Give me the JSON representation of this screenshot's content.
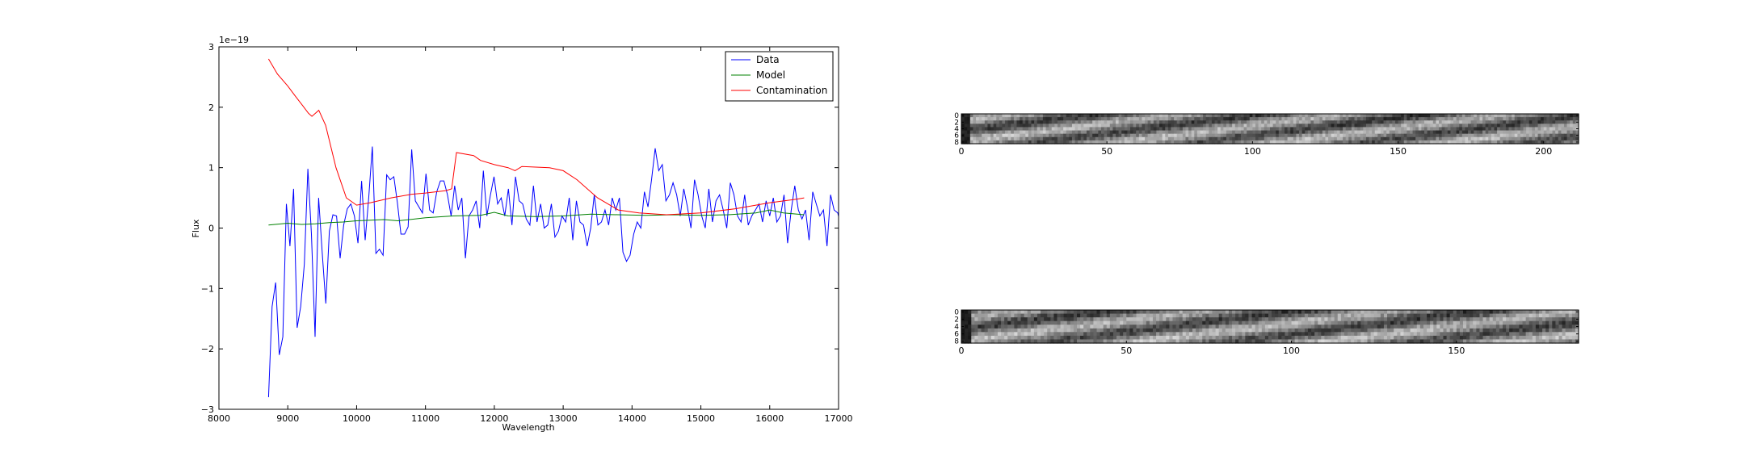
{
  "chart_data": [
    {
      "type": "line",
      "title": "",
      "xlabel": "Wavelength",
      "ylabel": "Flux",
      "scale_label": "1e−19",
      "xlim": [
        8000,
        17000
      ],
      "ylim": [
        -3,
        3
      ],
      "xticks": [
        "8000",
        "9000",
        "10000",
        "11000",
        "12000",
        "13000",
        "14000",
        "15000",
        "16000",
        "17000"
      ],
      "yticks": [
        "−3",
        "−2",
        "−1",
        "0",
        "1",
        "2",
        "3"
      ],
      "grid": false,
      "legend_position": "top-right",
      "series": [
        {
          "name": "Data",
          "color": "#0000ff",
          "x_start": 8720,
          "x_step": 52,
          "values": [
            -2.8,
            -1.3,
            -0.9,
            -2.1,
            -1.8,
            0.4,
            -0.3,
            0.65,
            -1.65,
            -1.3,
            -0.6,
            0.98,
            -0.1,
            -1.8,
            0.5,
            -0.4,
            -1.25,
            -0.05,
            0.22,
            0.2,
            -0.5,
            0.05,
            0.32,
            0.4,
            0.2,
            -0.25,
            0.78,
            -0.2,
            0.5,
            1.35,
            -0.42,
            -0.35,
            -0.45,
            0.88,
            0.8,
            0.85,
            0.42,
            -0.1,
            -0.1,
            0.02,
            1.3,
            0.45,
            0.35,
            0.25,
            0.9,
            0.3,
            0.25,
            0.6,
            0.78,
            0.78,
            0.55,
            0.2,
            0.7,
            0.3,
            0.5,
            -0.5,
            0.2,
            0.3,
            0.45,
            0.0,
            0.95,
            0.2,
            0.55,
            0.85,
            0.4,
            0.5,
            0.2,
            0.65,
            0.05,
            0.85,
            0.45,
            0.4,
            0.15,
            0.05,
            0.7,
            0.1,
            0.4,
            0.0,
            0.05,
            0.4,
            -0.15,
            -0.05,
            0.2,
            0.1,
            0.5,
            -0.2,
            0.45,
            0.1,
            0.05,
            -0.3,
            0.0,
            0.55,
            0.05,
            0.1,
            0.3,
            0.05,
            0.5,
            0.3,
            0.5,
            -0.4,
            -0.55,
            -0.45,
            -0.1,
            0.1,
            0.0,
            0.6,
            0.35,
            0.8,
            1.32,
            0.95,
            1.05,
            0.45,
            0.55,
            0.75,
            0.55,
            0.2,
            0.65,
            0.35,
            0.0,
            0.8,
            0.55,
            0.2,
            0.0,
            0.65,
            0.1,
            0.45,
            0.55,
            0.3,
            0.0,
            0.75,
            0.55,
            0.2,
            0.1,
            0.55,
            0.05,
            0.2,
            0.3,
            0.4,
            0.1,
            0.45,
            0.2,
            0.5,
            0.1,
            0.2,
            0.55,
            -0.25,
            0.3,
            0.7,
            0.3,
            0.15,
            0.3,
            -0.2,
            0.6,
            0.4,
            0.2,
            0.3,
            -0.3,
            0.55,
            0.3,
            0.25,
            0.0,
            0.6,
            0.5,
            0.3,
            0.85,
            0.55,
            0.5,
            0.6,
            0.4,
            0.15,
            0.5,
            0.1,
            -0.2,
            0.4,
            0.2,
            0.75,
            0.3,
            -0.1,
            0.25,
            0.85,
            0.1,
            0.55,
            0.2,
            0.3,
            0.45,
            -0.1,
            -0.05,
            0.4,
            0.3
          ]
        },
        {
          "name": "Model",
          "color": "#008000",
          "x": [
            8720,
            9000,
            9200,
            9400,
            9600,
            9800,
            10000,
            10200,
            10400,
            10600,
            11000,
            11400,
            11800,
            12000,
            12200,
            12600,
            13000,
            13400,
            13800,
            14200,
            14600,
            15000,
            15400,
            15800,
            16000,
            16200,
            16500
          ],
          "values": [
            0.05,
            0.08,
            0.06,
            0.07,
            0.09,
            0.1,
            0.12,
            0.13,
            0.14,
            0.12,
            0.17,
            0.2,
            0.21,
            0.26,
            0.2,
            0.19,
            0.2,
            0.23,
            0.22,
            0.21,
            0.22,
            0.21,
            0.22,
            0.25,
            0.3,
            0.25,
            0.22
          ]
        },
        {
          "name": "Contamination",
          "color": "#ff0000",
          "x": [
            8720,
            8850,
            9000,
            9100,
            9200,
            9300,
            9350,
            9450,
            9550,
            9700,
            9850,
            10000,
            10200,
            10500,
            10800,
            11000,
            11300,
            11380,
            11450,
            11700,
            11800,
            12000,
            12200,
            12300,
            12400,
            12800,
            13000,
            13200,
            13500,
            13800,
            14100,
            14500,
            15000,
            15500,
            16000,
            16400,
            16500
          ],
          "values": [
            2.8,
            2.55,
            2.35,
            2.2,
            2.05,
            1.9,
            1.85,
            1.95,
            1.7,
            1.0,
            0.5,
            0.38,
            0.42,
            0.5,
            0.56,
            0.58,
            0.62,
            0.65,
            1.25,
            1.2,
            1.12,
            1.05,
            1.0,
            0.95,
            1.02,
            1.0,
            0.95,
            0.8,
            0.5,
            0.3,
            0.25,
            0.22,
            0.25,
            0.32,
            0.42,
            0.48,
            0.5
          ]
        }
      ]
    },
    {
      "type": "heatmap",
      "title": "",
      "xticks": [
        "0",
        "50",
        "100",
        "150",
        "200"
      ],
      "yticks": [
        "0",
        "2",
        "4",
        "6",
        "8"
      ],
      "xlim": [
        0,
        212
      ],
      "ylim": [
        0,
        9
      ]
    },
    {
      "type": "heatmap",
      "title": "",
      "xticks": [
        "0",
        "50",
        "100",
        "150"
      ],
      "yticks": [
        "0",
        "2",
        "4",
        "6",
        "8"
      ],
      "xlim": [
        0,
        187
      ],
      "ylim": [
        0,
        9
      ]
    }
  ]
}
